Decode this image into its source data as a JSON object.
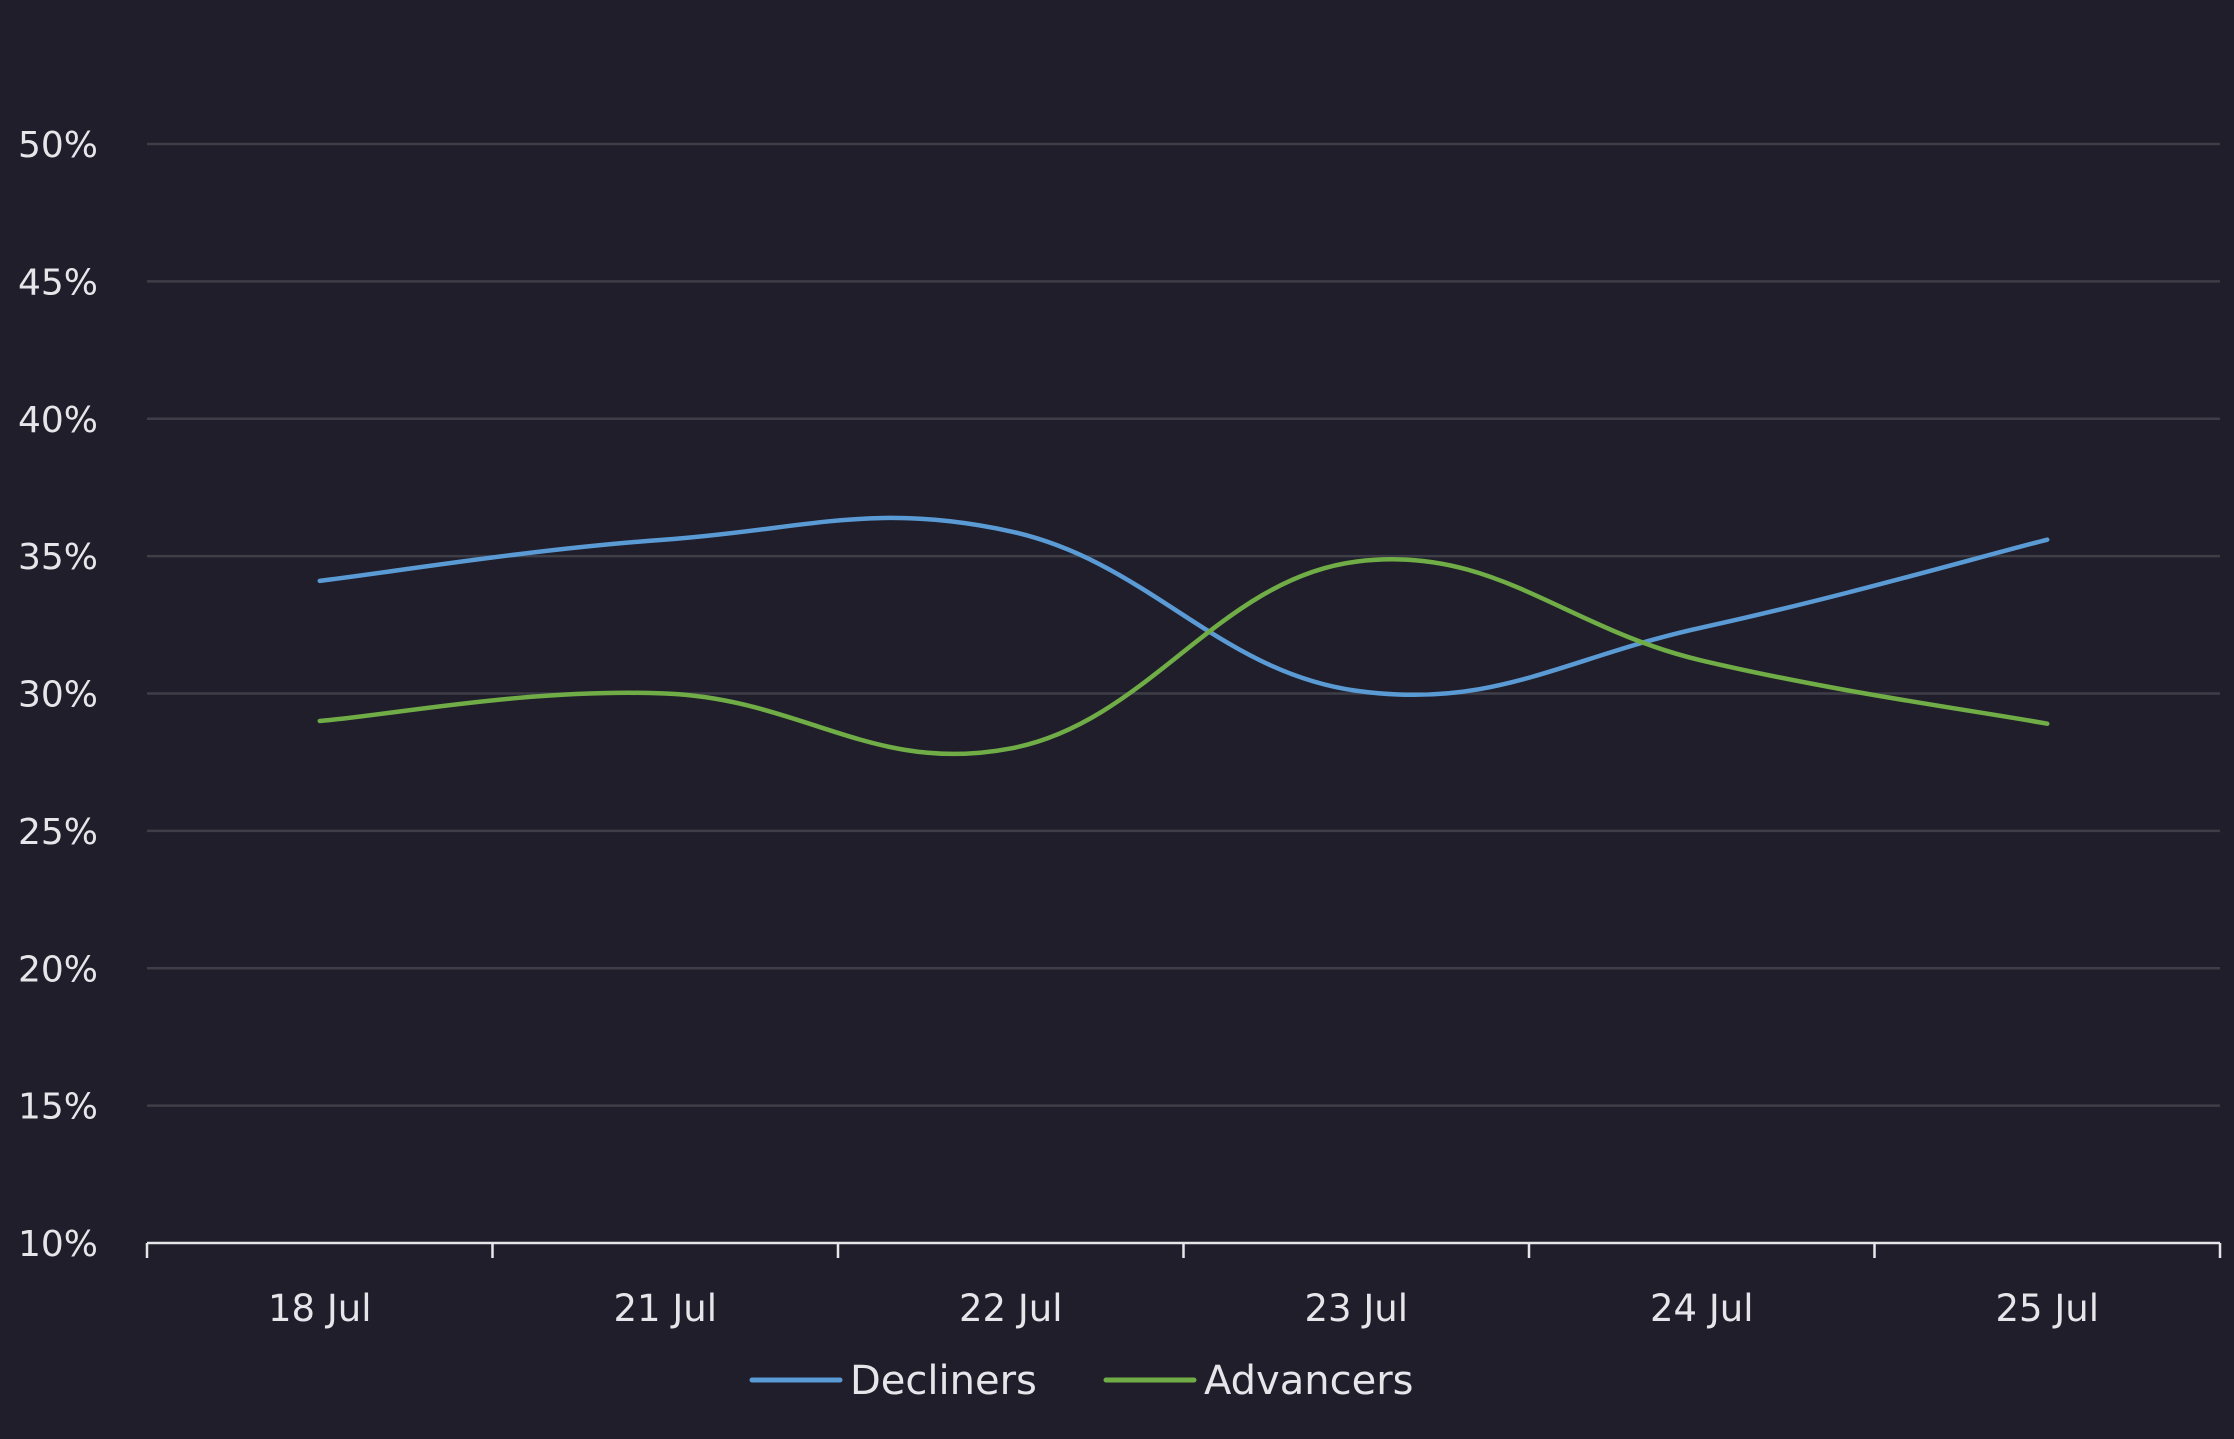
{
  "chart_data": {
    "type": "line",
    "categories": [
      "18 Jul",
      "21 Jul",
      "22 Jul",
      "23 Jul",
      "24 Jul",
      "25 Jul"
    ],
    "series": [
      {
        "name": "Decliners",
        "color": "#5b9bd5",
        "values": [
          34.1,
          35.6,
          35.9,
          30.1,
          32.4,
          35.6
        ]
      },
      {
        "name": "Advancers",
        "color": "#70ad47",
        "values": [
          29.0,
          30.0,
          28.0,
          34.8,
          31.2,
          28.9
        ]
      }
    ],
    "y_ticks": [
      "10%",
      "15%",
      "20%",
      "25%",
      "30%",
      "35%",
      "40%",
      "45%",
      "50%"
    ],
    "ylim": [
      10,
      50
    ],
    "grid": true,
    "legend": "bottom-center",
    "title": "",
    "xlabel": "",
    "ylabel": ""
  }
}
